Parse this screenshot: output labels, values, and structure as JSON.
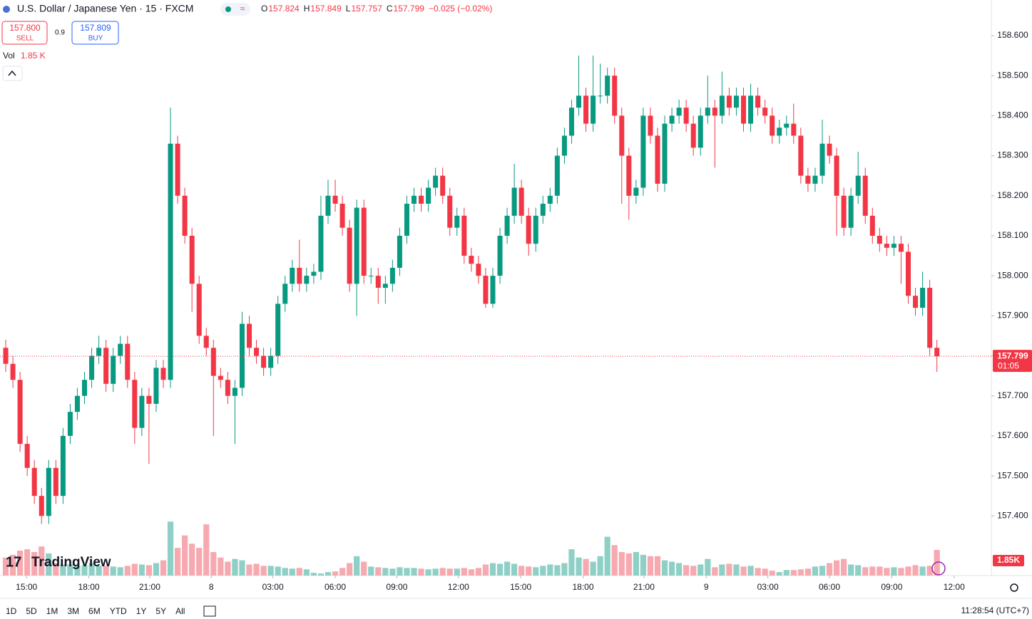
{
  "chart_data": {
    "type": "candlestick",
    "title": "U.S. Dollar / Japanese Yen · 15 · FXCM",
    "ohlc_legend": [
      {
        "label": "O",
        "value": "157.824"
      },
      {
        "label": "H",
        "value": "157.849"
      },
      {
        "label": "L",
        "value": "157.757"
      },
      {
        "label": "C",
        "value": "157.799"
      },
      {
        "label": "",
        "value": "−0.025 (−0.02%)"
      }
    ],
    "sell": {
      "price": "157.800",
      "label": "SELL"
    },
    "buy": {
      "price": "157.809",
      "label": "BUY"
    },
    "spread": "0.9",
    "volume_label": "Vol",
    "volume_value": "1.85 K",
    "brand": "TradingView",
    "clock": "11:28:54 (UTC+7)",
    "ranges": [
      "1D",
      "5D",
      "1M",
      "3M",
      "6M",
      "YTD",
      "1Y",
      "5Y",
      "All"
    ],
    "up_color": "#089981",
    "down_color": "#f23645",
    "volume_up_color": "#8fd0c6",
    "volume_down_color": "#f7a9b0",
    "grid": false,
    "xlim": [
      -0.8,
      137.6
    ],
    "ylim": [
      157.251,
      158.689
    ],
    "volume_ylim": [
      0,
      39000
    ],
    "yticks": [
      {
        "value": 157.4,
        "label": "157.400"
      },
      {
        "value": 157.5,
        "label": "157.500"
      },
      {
        "value": 157.6,
        "label": "157.600"
      },
      {
        "value": 157.7,
        "label": "157.700"
      },
      {
        "value": 157.8,
        "label": "157.800"
      },
      {
        "value": 157.9,
        "label": "157.900"
      },
      {
        "value": 158.0,
        "label": "158.000"
      },
      {
        "value": 158.1,
        "label": "158.100"
      },
      {
        "value": 158.2,
        "label": "158.200"
      },
      {
        "value": 158.3,
        "label": "158.300"
      },
      {
        "value": 158.4,
        "label": "158.400"
      },
      {
        "value": 158.5,
        "label": "158.500"
      },
      {
        "value": 158.6,
        "label": "158.600"
      }
    ],
    "xticks": [
      {
        "value": 2.9,
        "label": "15:00"
      },
      {
        "value": 11.6,
        "label": "18:00"
      },
      {
        "value": 20.1,
        "label": "21:00"
      },
      {
        "value": 28.7,
        "label": "8"
      },
      {
        "value": 37.3,
        "label": "03:00"
      },
      {
        "value": 46.0,
        "label": "06:00"
      },
      {
        "value": 54.6,
        "label": "09:00"
      },
      {
        "value": 63.2,
        "label": "12:00"
      },
      {
        "value": 71.9,
        "label": "15:00"
      },
      {
        "value": 80.6,
        "label": "18:00"
      },
      {
        "value": 89.1,
        "label": "21:00"
      },
      {
        "value": 97.8,
        "label": "9"
      },
      {
        "value": 106.4,
        "label": "03:00"
      },
      {
        "value": 115.0,
        "label": "06:00"
      },
      {
        "value": 123.7,
        "label": "09:00"
      },
      {
        "value": 132.4,
        "label": "12:00"
      }
    ],
    "last_price": {
      "value": 157.799,
      "label": "157.799"
    },
    "countdown": "01:05",
    "last_volume_label": "1.85K",
    "open": [
      157.82,
      157.78,
      157.74,
      157.58,
      157.52,
      157.45,
      157.4,
      157.52,
      157.45,
      157.6,
      157.66,
      157.7,
      157.74,
      157.8,
      157.82,
      157.73,
      157.8,
      157.83,
      157.74,
      157.62,
      157.7,
      157.68,
      157.77,
      157.74,
      158.33,
      158.2,
      158.1,
      157.98,
      157.85,
      157.82,
      157.75,
      157.74,
      157.7,
      157.72,
      157.88,
      157.82,
      157.8,
      157.77,
      157.8,
      157.93,
      157.98,
      158.02,
      157.98,
      158.0,
      158.01,
      158.15,
      158.2,
      158.18,
      158.12,
      157.98,
      158.17,
      158.0,
      158.0,
      157.97,
      157.98,
      158.02,
      158.1,
      158.18,
      158.2,
      158.18,
      158.22,
      158.25,
      158.2,
      158.12,
      158.15,
      158.05,
      158.03,
      158.0,
      157.93,
      158.0,
      158.1,
      158.15,
      158.22,
      158.15,
      158.08,
      158.15,
      158.18,
      158.2,
      158.3,
      158.35,
      158.42,
      158.45,
      158.38,
      158.45,
      158.45,
      158.5,
      158.4,
      158.3,
      158.2,
      158.22,
      158.4,
      158.35,
      158.23,
      158.38,
      158.4,
      158.42,
      158.38,
      158.32,
      158.4,
      158.42,
      158.4,
      158.45,
      158.42,
      158.45,
      158.38,
      158.45,
      158.42,
      158.4,
      158.35,
      158.37,
      158.38,
      158.35,
      158.25,
      158.23,
      158.25,
      158.33,
      158.3,
      158.2,
      158.12,
      158.2,
      158.25,
      158.15,
      158.1,
      158.08,
      158.07,
      158.08,
      158.06,
      157.95,
      157.92,
      157.97,
      157.82
    ],
    "high": [
      157.84,
      157.8,
      157.76,
      157.6,
      157.54,
      157.47,
      157.54,
      157.54,
      157.62,
      157.68,
      157.72,
      157.76,
      157.82,
      157.85,
      157.84,
      157.82,
      157.85,
      157.85,
      157.76,
      157.72,
      157.72,
      157.79,
      157.79,
      158.42,
      158.35,
      158.22,
      158.12,
      158.0,
      157.87,
      157.84,
      157.77,
      157.76,
      157.74,
      157.91,
      157.9,
      157.84,
      157.82,
      157.82,
      157.95,
      158.0,
      158.04,
      158.09,
      158.02,
      158.03,
      158.2,
      158.24,
      158.24,
      158.2,
      158.14,
      158.19,
      158.19,
      158.02,
      158.02,
      158.0,
      158.04,
      158.12,
      158.2,
      158.22,
      158.22,
      158.24,
      158.27,
      158.27,
      158.22,
      158.17,
      158.17,
      158.07,
      158.05,
      158.02,
      158.02,
      158.12,
      158.17,
      158.28,
      158.24,
      158.17,
      158.17,
      158.2,
      158.22,
      158.32,
      158.37,
      158.44,
      158.55,
      158.47,
      158.55,
      158.53,
      158.52,
      158.52,
      158.42,
      158.32,
      158.24,
      158.42,
      158.42,
      158.37,
      158.4,
      158.42,
      158.44,
      158.44,
      158.4,
      158.42,
      158.5,
      158.44,
      158.51,
      158.47,
      158.47,
      158.47,
      158.48,
      158.47,
      158.44,
      158.42,
      158.39,
      158.4,
      158.43,
      158.37,
      158.27,
      158.27,
      158.39,
      158.35,
      158.32,
      158.22,
      158.22,
      158.31,
      158.27,
      158.17,
      158.12,
      158.1,
      158.1,
      158.1,
      158.08,
      157.97,
      158.01,
      157.99,
      157.84
    ],
    "low": [
      157.76,
      157.72,
      157.56,
      157.5,
      157.43,
      157.38,
      157.38,
      157.43,
      157.43,
      157.58,
      157.64,
      157.68,
      157.72,
      157.78,
      157.71,
      157.71,
      157.78,
      157.72,
      157.58,
      157.6,
      157.53,
      157.66,
      157.72,
      157.72,
      158.18,
      158.08,
      157.91,
      157.83,
      157.8,
      157.6,
      157.72,
      157.68,
      157.58,
      157.7,
      157.8,
      157.78,
      157.75,
      157.75,
      157.78,
      157.91,
      157.96,
      157.96,
      157.96,
      157.98,
      157.99,
      158.13,
      158.16,
      158.1,
      157.96,
      157.9,
      157.98,
      157.98,
      157.93,
      157.93,
      157.96,
      158.0,
      158.08,
      158.16,
      158.16,
      158.16,
      158.2,
      158.18,
      158.1,
      158.1,
      158.03,
      158.01,
      157.98,
      157.92,
      157.92,
      157.98,
      158.08,
      158.13,
      158.13,
      158.05,
      158.06,
      158.13,
      158.16,
      158.18,
      158.28,
      158.33,
      158.4,
      158.36,
      158.36,
      158.43,
      158.43,
      158.38,
      158.18,
      158.14,
      158.18,
      158.2,
      158.33,
      158.21,
      158.21,
      158.36,
      158.38,
      158.36,
      158.3,
      158.3,
      158.38,
      158.27,
      158.38,
      158.4,
      158.4,
      158.36,
      158.36,
      158.4,
      158.38,
      158.33,
      158.33,
      158.35,
      158.33,
      158.23,
      158.21,
      158.21,
      158.23,
      158.28,
      158.1,
      158.1,
      158.1,
      158.18,
      158.13,
      158.08,
      158.06,
      158.05,
      158.05,
      157.98,
      157.93,
      157.9,
      157.9,
      157.8,
      157.76
    ],
    "close": [
      157.78,
      157.74,
      157.58,
      157.52,
      157.45,
      157.4,
      157.52,
      157.45,
      157.6,
      157.66,
      157.7,
      157.74,
      157.8,
      157.82,
      157.73,
      157.8,
      157.83,
      157.74,
      157.62,
      157.7,
      157.68,
      157.77,
      157.74,
      158.33,
      158.2,
      158.1,
      157.98,
      157.85,
      157.82,
      157.75,
      157.74,
      157.7,
      157.72,
      157.88,
      157.82,
      157.8,
      157.77,
      157.8,
      157.93,
      157.98,
      158.02,
      157.98,
      158.0,
      158.01,
      158.15,
      158.2,
      158.18,
      158.12,
      157.98,
      158.17,
      158.0,
      158.0,
      157.97,
      157.98,
      158.02,
      158.1,
      158.18,
      158.2,
      158.18,
      158.22,
      158.25,
      158.2,
      158.12,
      158.15,
      158.05,
      158.03,
      158.0,
      157.93,
      158.0,
      158.1,
      158.15,
      158.22,
      158.15,
      158.08,
      158.15,
      158.18,
      158.2,
      158.3,
      158.35,
      158.42,
      158.45,
      158.38,
      158.45,
      158.45,
      158.5,
      158.4,
      158.3,
      158.2,
      158.22,
      158.4,
      158.35,
      158.23,
      158.38,
      158.4,
      158.42,
      158.38,
      158.32,
      158.4,
      158.42,
      158.4,
      158.45,
      158.42,
      158.45,
      158.38,
      158.45,
      158.42,
      158.4,
      158.35,
      158.37,
      158.38,
      158.35,
      158.25,
      158.23,
      158.25,
      158.33,
      158.3,
      158.2,
      158.12,
      158.2,
      158.25,
      158.15,
      158.1,
      158.08,
      158.07,
      158.08,
      158.06,
      157.95,
      157.92,
      157.97,
      157.82,
      157.799
    ],
    "volume": [
      1300,
      1500,
      1800,
      1900,
      1700,
      2100,
      1600,
      900,
      800,
      800,
      700,
      750,
      900,
      700,
      700,
      650,
      600,
      700,
      850,
      800,
      750,
      900,
      1100,
      3900,
      2000,
      2900,
      2300,
      2000,
      3700,
      1700,
      1300,
      1000,
      1200,
      1100,
      800,
      850,
      700,
      700,
      650,
      550,
      500,
      550,
      450,
      200,
      150,
      250,
      300,
      550,
      900,
      1400,
      1000,
      650,
      600,
      550,
      500,
      600,
      550,
      550,
      500,
      450,
      500,
      550,
      500,
      500,
      550,
      450,
      550,
      800,
      900,
      850,
      1000,
      850,
      700,
      650,
      600,
      700,
      800,
      750,
      900,
      1900,
      1300,
      1200,
      1000,
      1400,
      2800,
      2200,
      1700,
      1600,
      1700,
      1500,
      1400,
      1400,
      1100,
      1000,
      900,
      750,
      700,
      800,
      1200,
      600,
      800,
      850,
      800,
      650,
      700,
      550,
      500,
      350,
      250,
      400,
      400,
      450,
      500,
      650,
      700,
      900,
      1100,
      1200,
      800,
      750,
      600,
      650,
      650,
      550,
      600,
      550,
      650,
      750,
      650,
      700,
      1850
    ]
  }
}
